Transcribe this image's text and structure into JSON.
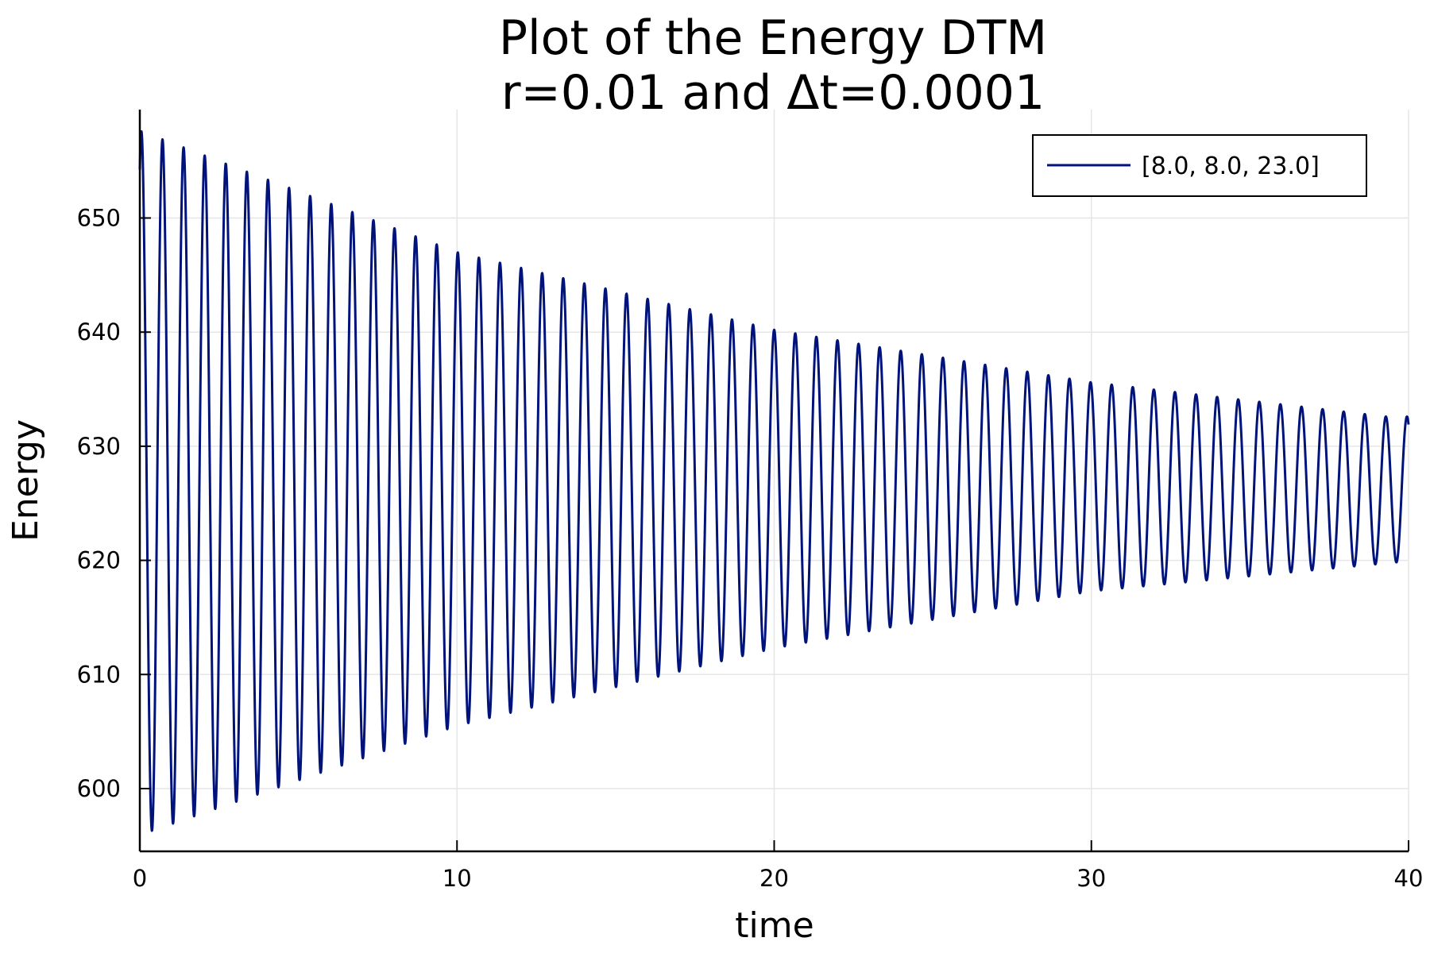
{
  "chart_data": {
    "type": "line",
    "title": [
      "Plot of the Energy DTM",
      "r=0.01 and Δt=0.0001"
    ],
    "xlabel": "time",
    "ylabel": "Energy",
    "xlim": [
      0,
      40
    ],
    "ylim": [
      594.5,
      659.5
    ],
    "xticks": [
      0,
      10,
      20,
      30,
      40
    ],
    "yticks": [
      600,
      610,
      620,
      630,
      640,
      650
    ],
    "grid": true,
    "legend_position": "top-right",
    "line_color": "#00137a",
    "series": [
      {
        "name": "[8.0, 8.0, 23.0]",
        "oscillation_period": 0.665,
        "peaks": [
          [
            0.05,
            657.6
          ],
          [
            10.0,
            647.0
          ],
          [
            20.0,
            640.2
          ],
          [
            30.0,
            635.6
          ],
          [
            39.3,
            632.6
          ]
        ],
        "troughs": [
          [
            0.38,
            596.3
          ],
          [
            10.0,
            605.5
          ],
          [
            20.0,
            612.3
          ],
          [
            30.0,
            617.3
          ],
          [
            39.9,
            619.9
          ]
        ],
        "end_point": [
          40,
          627.0
        ]
      }
    ]
  }
}
